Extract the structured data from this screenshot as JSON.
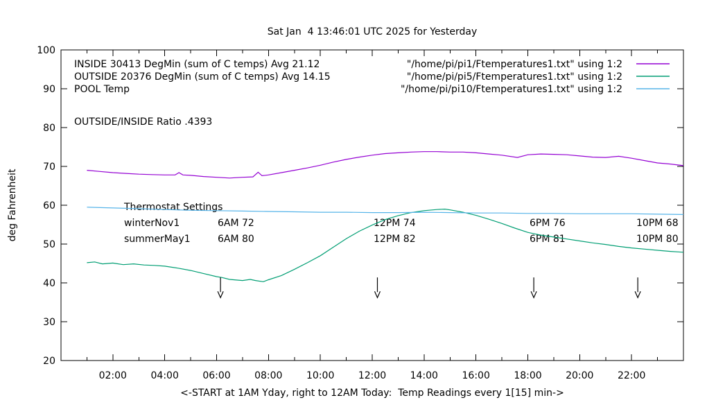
{
  "chart_data": {
    "type": "line",
    "title": "Sat Jan  4 13:46:01 UTC 2025 for Yesterday",
    "xlabel": "<-START at 1AM Yday, right to 12AM Today:  Temp Readings every 1[15] min->",
    "ylabel": "deg Fahrenheit",
    "xlim": [
      0,
      24
    ],
    "ylim": [
      20,
      100
    ],
    "grid": false,
    "legend_position": "top-inside",
    "x_major_ticks": [
      2,
      4,
      6,
      8,
      10,
      12,
      14,
      16,
      18,
      20,
      22
    ],
    "x_tick_labels": [
      "02:00",
      "04:00",
      "06:00",
      "08:00",
      "10:00",
      "12:00",
      "14:00",
      "16:00",
      "18:00",
      "20:00",
      "22:00"
    ],
    "x_minor_ticks": [
      1,
      3,
      5,
      7,
      9,
      11,
      13,
      15,
      17,
      19,
      21,
      23
    ],
    "y_major_ticks": [
      20,
      30,
      40,
      50,
      60,
      70,
      80,
      90,
      100
    ],
    "y_tick_labels": [
      "20",
      "30",
      "40",
      "50",
      "60",
      "70",
      "80",
      "90",
      "100"
    ],
    "series": [
      {
        "name": "INSIDE",
        "legend_label": "INSIDE 30413 DegMin (sum of C temps) Avg 21.12",
        "source_label": "\"/home/pi/pi1/Ftemperatures1.txt\" using 1:2",
        "color": "#9400d3",
        "points": [
          [
            1,
            69.0
          ],
          [
            1.5,
            68.7
          ],
          [
            2,
            68.4
          ],
          [
            2.5,
            68.2
          ],
          [
            3,
            68.0
          ],
          [
            3.5,
            67.9
          ],
          [
            4,
            67.8
          ],
          [
            4.4,
            67.8
          ],
          [
            4.55,
            68.4
          ],
          [
            4.7,
            67.8
          ],
          [
            5,
            67.7
          ],
          [
            5.5,
            67.4
          ],
          [
            6,
            67.2
          ],
          [
            6.5,
            67.0
          ],
          [
            7,
            67.2
          ],
          [
            7.4,
            67.3
          ],
          [
            7.6,
            68.5
          ],
          [
            7.75,
            67.6
          ],
          [
            8,
            67.8
          ],
          [
            8.5,
            68.4
          ],
          [
            9,
            69.0
          ],
          [
            9.5,
            69.6
          ],
          [
            10,
            70.3
          ],
          [
            10.5,
            71.1
          ],
          [
            11,
            71.8
          ],
          [
            11.5,
            72.4
          ],
          [
            12,
            72.9
          ],
          [
            12.5,
            73.3
          ],
          [
            13,
            73.5
          ],
          [
            13.5,
            73.7
          ],
          [
            14,
            73.8
          ],
          [
            14.5,
            73.8
          ],
          [
            15,
            73.7
          ],
          [
            15.5,
            73.7
          ],
          [
            16,
            73.5
          ],
          [
            16.5,
            73.2
          ],
          [
            17,
            72.9
          ],
          [
            17.6,
            72.3
          ],
          [
            18,
            73.0
          ],
          [
            18.5,
            73.2
          ],
          [
            19,
            73.1
          ],
          [
            19.5,
            73.0
          ],
          [
            20,
            72.7
          ],
          [
            20.5,
            72.4
          ],
          [
            21,
            72.3
          ],
          [
            21.5,
            72.6
          ],
          [
            22,
            72.1
          ],
          [
            22.5,
            71.5
          ],
          [
            23,
            70.9
          ],
          [
            23.5,
            70.6
          ],
          [
            24,
            70.2
          ]
        ]
      },
      {
        "name": "OUTSIDE",
        "legend_label": "OUTSIDE 20376 DegMin (sum of C temps) Avg 14.15",
        "source_label": "\"/home/pi/pi5/Ftemperatures1.txt\" using 1:2",
        "color": "#009e73",
        "points": [
          [
            1,
            45.2
          ],
          [
            1.3,
            45.4
          ],
          [
            1.6,
            44.9
          ],
          [
            2,
            45.1
          ],
          [
            2.4,
            44.7
          ],
          [
            2.8,
            44.9
          ],
          [
            3.2,
            44.6
          ],
          [
            3.6,
            44.5
          ],
          [
            4,
            44.3
          ],
          [
            4.5,
            43.8
          ],
          [
            5,
            43.2
          ],
          [
            5.5,
            42.4
          ],
          [
            6,
            41.6
          ],
          [
            6.2,
            41.4
          ],
          [
            6.5,
            40.9
          ],
          [
            7,
            40.6
          ],
          [
            7.3,
            40.9
          ],
          [
            7.5,
            40.6
          ],
          [
            7.8,
            40.3
          ],
          [
            8,
            40.8
          ],
          [
            8.5,
            41.9
          ],
          [
            9,
            43.5
          ],
          [
            9.5,
            45.2
          ],
          [
            10,
            47.0
          ],
          [
            10.5,
            49.2
          ],
          [
            11,
            51.4
          ],
          [
            11.5,
            53.3
          ],
          [
            12,
            54.9
          ],
          [
            12.5,
            56.3
          ],
          [
            13,
            57.3
          ],
          [
            13.5,
            58.1
          ],
          [
            14,
            58.6
          ],
          [
            14.5,
            58.9
          ],
          [
            14.8,
            59.0
          ],
          [
            15,
            58.8
          ],
          [
            15.5,
            58.2
          ],
          [
            16,
            57.4
          ],
          [
            16.5,
            56.4
          ],
          [
            17,
            55.3
          ],
          [
            17.5,
            54.1
          ],
          [
            18,
            53.0
          ],
          [
            18.5,
            52.3
          ],
          [
            19,
            51.8
          ],
          [
            19.5,
            51.3
          ],
          [
            20,
            50.8
          ],
          [
            20.5,
            50.3
          ],
          [
            21,
            49.9
          ],
          [
            21.5,
            49.4
          ],
          [
            22,
            49.0
          ],
          [
            22.5,
            48.7
          ],
          [
            23,
            48.4
          ],
          [
            23.5,
            48.1
          ],
          [
            24,
            47.9
          ]
        ]
      },
      {
        "name": "POOL",
        "legend_label": "POOL Temp",
        "source_label": "\"/home/pi/pi10/Ftemperatures1.txt\" using 1:2",
        "color": "#56b4e9",
        "points": [
          [
            1,
            59.5
          ],
          [
            2,
            59.3
          ],
          [
            3,
            59.1
          ],
          [
            4,
            58.9
          ],
          [
            5,
            58.7
          ],
          [
            6,
            58.6
          ],
          [
            7,
            58.5
          ],
          [
            8,
            58.4
          ],
          [
            9,
            58.3
          ],
          [
            10,
            58.2
          ],
          [
            11,
            58.2
          ],
          [
            12,
            58.1
          ],
          [
            13,
            58.1
          ],
          [
            14,
            58.2
          ],
          [
            15,
            58.1
          ],
          [
            16,
            58.0
          ],
          [
            17,
            58.0
          ],
          [
            18,
            57.9
          ],
          [
            19,
            57.9
          ],
          [
            20,
            57.8
          ],
          [
            21,
            57.8
          ],
          [
            22,
            57.8
          ],
          [
            23,
            57.7
          ],
          [
            24,
            57.6
          ]
        ]
      }
    ],
    "annotations": {
      "ratio_text": "OUTSIDE/INSIDE Ratio .4393",
      "thermostat": {
        "title": "Thermostat Settings",
        "rows": [
          {
            "name": "winterNov1",
            "settings": [
              "6AM 72",
              "12PM 74",
              "6PM 76",
              "10PM 68"
            ]
          },
          {
            "name": "summerMay1",
            "settings": [
              "6AM 80",
              "12PM 82",
              "6PM 81",
              "10PM 80"
            ]
          }
        ]
      },
      "arrow_times_hours": [
        6.15,
        12.2,
        18.23,
        22.24
      ],
      "arrow_from_F": 41.4,
      "arrow_to_F": 36.2
    },
    "colors": {
      "background": "#ffffff",
      "text": "#000000"
    }
  }
}
